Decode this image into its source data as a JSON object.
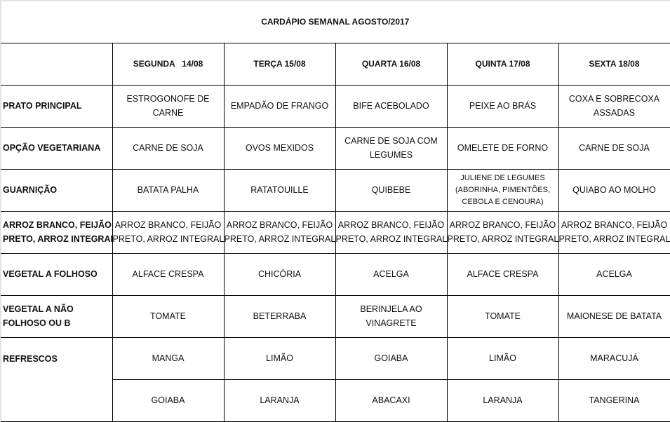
{
  "title": "CARDÁPIO SEMANAL AGOSTO/2017",
  "days": [
    "SEGUNDA   14/08",
    "TERÇA 15/08",
    "QUARTA 16/08",
    "QUINTA 17/08",
    "SEXTA 18/08"
  ],
  "rows": [
    {
      "label": "PRATO PRINCIPAL",
      "cells": [
        [
          "ESTROGONOFE DE",
          "CARNE"
        ],
        [
          "EMPADÃO DE FRANGO"
        ],
        [
          "BIFE ACEBOLADO"
        ],
        [
          "PEIXE AO BRÁS"
        ],
        [
          "COXA E SOBRECOXA",
          "ASSADAS"
        ]
      ]
    },
    {
      "label": "OPÇÃO VEGETARIANA",
      "cells": [
        [
          "CARNE DE SOJA"
        ],
        [
          "OVOS MEXIDOS"
        ],
        [
          "CARNE DE SOJA COM",
          "LEGUMES"
        ],
        [
          "OMELETE DE FORNO"
        ],
        [
          "CARNE DE SOJA"
        ]
      ]
    },
    {
      "label": "GUARNIÇÃO",
      "cells": [
        [
          "BATATA PALHA"
        ],
        [
          "RATATOUILLE"
        ],
        [
          "QUIBEBE"
        ],
        [
          "JULIENE DE LEGUMES",
          "(ABORINHA, PIMENTÕES,",
          "CEBOLA E CENOURA)"
        ],
        [
          "QUIABO AO MOLHO"
        ]
      ]
    },
    {
      "label": [
        "ARROZ BRANCO, FEIJÃO",
        "PRETO, ARROZ INTEGRAL"
      ],
      "cells": [
        [
          "ARROZ BRANCO, FEIJÃO",
          "PRETO, ARROZ INTEGRAL"
        ],
        [
          "ARROZ BRANCO, FEIJÃO",
          "PRETO, ARROZ INTEGRAL"
        ],
        [
          "ARROZ BRANCO, FEIJÃO",
          "PRETO, ARROZ INTEGRAL"
        ],
        [
          "ARROZ BRANCO, FEIJÃO",
          "PRETO, ARROZ INTEGRAL"
        ],
        [
          "ARROZ BRANCO, FEIJÃO",
          "PRETO, ARROZ INTEGRAL"
        ]
      ]
    },
    {
      "label": "VEGETAL A FOLHOSO",
      "cells": [
        [
          "ALFACE CRESPA"
        ],
        [
          "CHICÓRIA"
        ],
        [
          "ACELGA"
        ],
        [
          "ALFACE CRESPA"
        ],
        [
          "ACELGA"
        ]
      ]
    },
    {
      "label": [
        "VEGETAL A NÃO",
        "FOLHOSO OU B"
      ],
      "cells": [
        [
          "TOMATE"
        ],
        [
          "BETERRABA"
        ],
        [
          "BERINJELA AO",
          "VINAGRETE"
        ],
        [
          "TOMATE"
        ],
        [
          "MAIONESE DE BATATA"
        ]
      ]
    },
    {
      "label": "REFRESCOS",
      "rowspan": 2,
      "cells": [
        [
          "MANGA"
        ],
        [
          "LIMÃO"
        ],
        [
          "GOIABA"
        ],
        [
          "LIMÃO"
        ],
        [
          "MARACUJÁ"
        ]
      ]
    },
    {
      "cells": [
        [
          "GOIABA"
        ],
        [
          "LARANJA"
        ],
        [
          "ABACAXI"
        ],
        [
          "LARANJA"
        ],
        [
          "TANGERINA"
        ]
      ]
    }
  ]
}
